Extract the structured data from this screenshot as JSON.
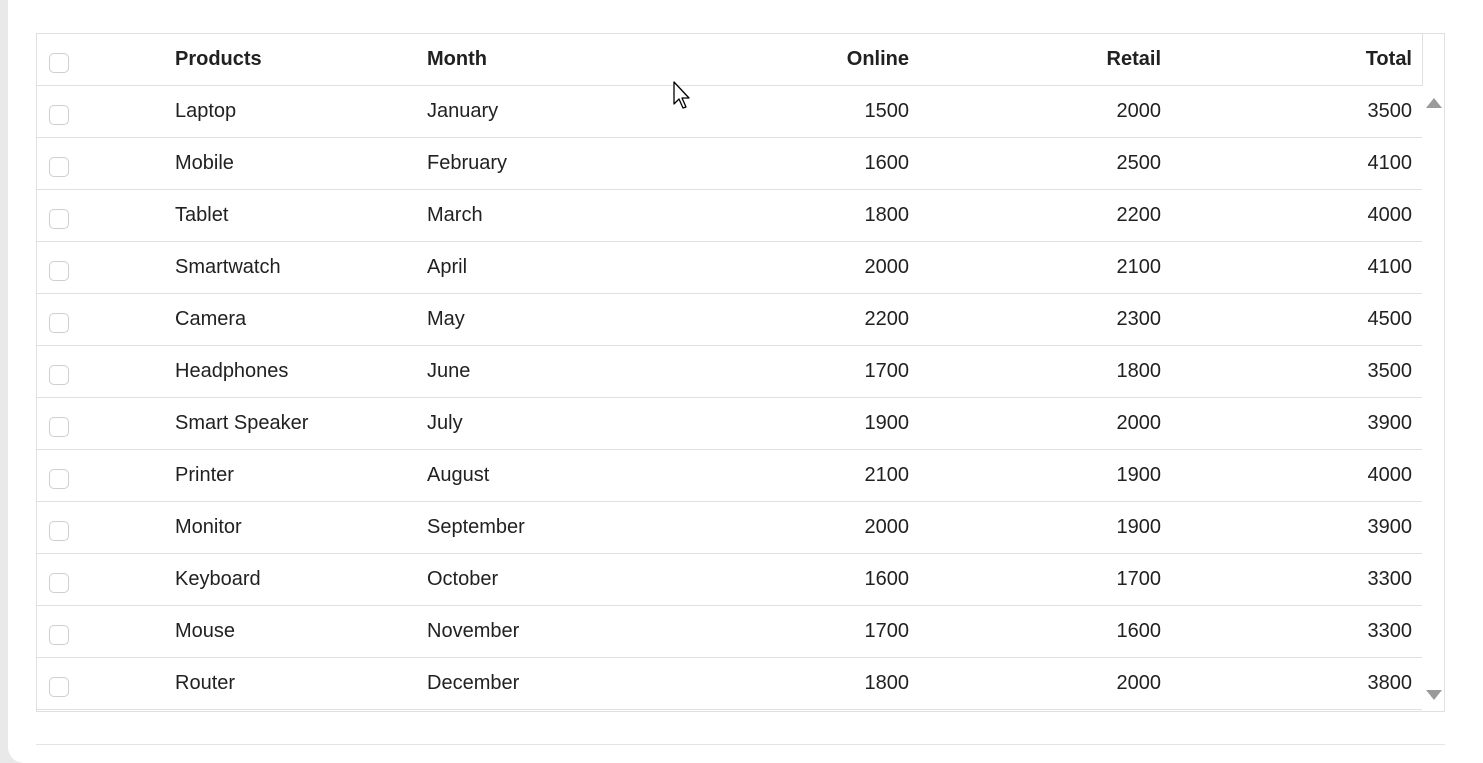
{
  "columns": {
    "products": "Products",
    "month": "Month",
    "online": "Online",
    "retail": "Retail",
    "total": "Total"
  },
  "rows": [
    {
      "product": "Laptop",
      "month": "January",
      "online": "1500",
      "retail": "2000",
      "total": "3500"
    },
    {
      "product": "Mobile",
      "month": "February",
      "online": "1600",
      "retail": "2500",
      "total": "4100"
    },
    {
      "product": "Tablet",
      "month": "March",
      "online": "1800",
      "retail": "2200",
      "total": "4000"
    },
    {
      "product": "Smartwatch",
      "month": "April",
      "online": "2000",
      "retail": "2100",
      "total": "4100"
    },
    {
      "product": "Camera",
      "month": "May",
      "online": "2200",
      "retail": "2300",
      "total": "4500"
    },
    {
      "product": "Headphones",
      "month": "June",
      "online": "1700",
      "retail": "1800",
      "total": "3500"
    },
    {
      "product": "Smart Speaker",
      "month": "July",
      "online": "1900",
      "retail": "2000",
      "total": "3900"
    },
    {
      "product": "Printer",
      "month": "August",
      "online": "2100",
      "retail": "1900",
      "total": "4000"
    },
    {
      "product": "Monitor",
      "month": "September",
      "online": "2000",
      "retail": "1900",
      "total": "3900"
    },
    {
      "product": "Keyboard",
      "month": "October",
      "online": "1600",
      "retail": "1700",
      "total": "3300"
    },
    {
      "product": "Mouse",
      "month": "November",
      "online": "1700",
      "retail": "1600",
      "total": "3300"
    },
    {
      "product": "Router",
      "month": "December",
      "online": "1800",
      "retail": "2000",
      "total": "3800"
    }
  ],
  "icons": {
    "scroll_up": "chevron-up-icon",
    "scroll_down": "chevron-down-icon",
    "cursor": "mouse-pointer-icon"
  },
  "colors": {
    "border": "#e0e0e0",
    "text": "#212121",
    "checkbox_border": "#cfcfcf",
    "scroll_arrow": "#9a9a9a"
  }
}
